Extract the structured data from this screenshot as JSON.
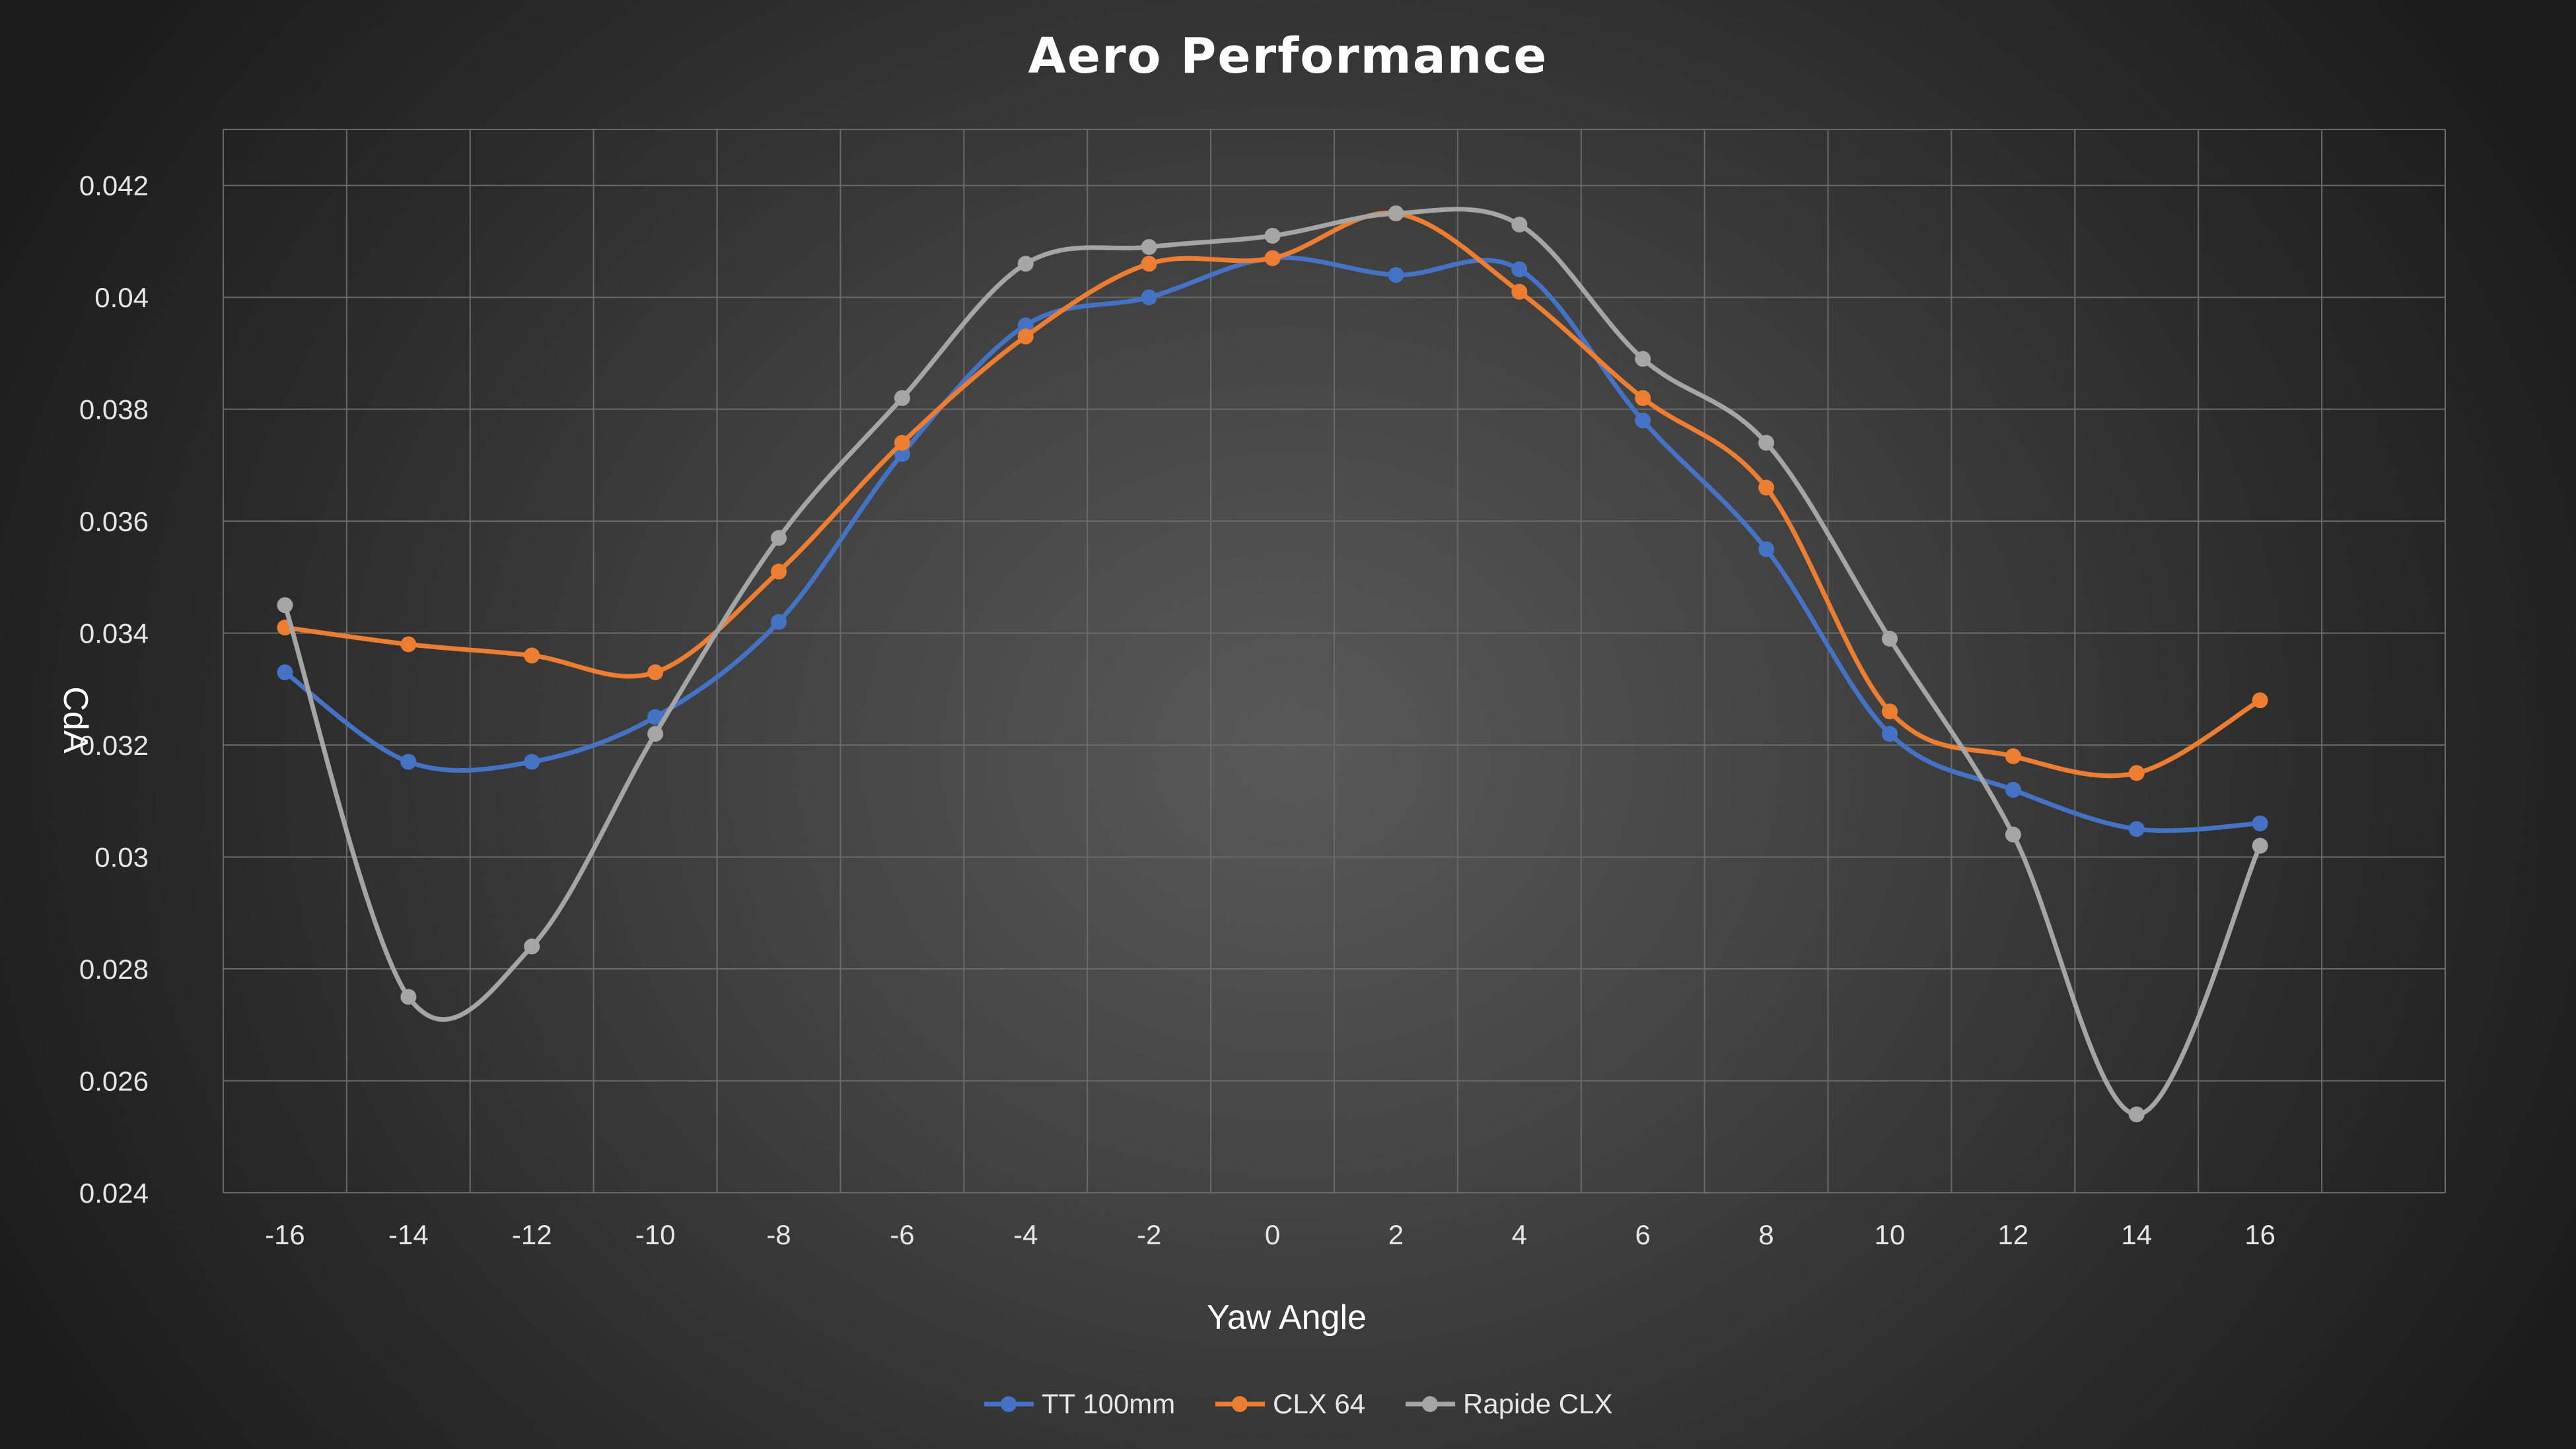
{
  "colors": {
    "tt": "#4472c4",
    "clx": "#ed7d31",
    "rapide": "#a5a5a5",
    "text": "#ffffff"
  },
  "chart_data": {
    "type": "line",
    "title": "Aero Performance",
    "xlabel": "Yaw Angle",
    "ylabel": "CdA",
    "x": [
      -16,
      -14,
      -12,
      -10,
      -8,
      -6,
      -4,
      -2,
      0,
      2,
      4,
      6,
      8,
      10,
      12,
      14,
      16
    ],
    "xtick_labels": [
      "-16",
      "-14",
      "-12",
      "-10",
      "-8",
      "-6",
      "-4",
      "-2",
      "0",
      "2",
      "4",
      "6",
      "8",
      "10",
      "12",
      "14",
      "16"
    ],
    "ytick_labels": [
      "0.024",
      "0.026",
      "0.028",
      "0.03",
      "0.032",
      "0.034",
      "0.036",
      "0.038",
      "0.04",
      "0.042"
    ],
    "yticks": [
      0.024,
      0.026,
      0.028,
      0.03,
      0.032,
      0.034,
      0.036,
      0.038,
      0.04,
      0.042
    ],
    "ylim": [
      0.024,
      0.043
    ],
    "xlim": [
      -17,
      19
    ],
    "grid": true,
    "smooth": true,
    "legend_position": "bottom",
    "series": [
      {
        "name": "TT 100mm",
        "color_key": "tt",
        "values": [
          0.0333,
          0.0317,
          0.0317,
          0.0325,
          0.0342,
          0.0372,
          0.0395,
          0.04,
          0.0407,
          0.0404,
          0.0405,
          0.0378,
          0.0355,
          0.0322,
          0.0312,
          0.0305,
          0.0306
        ]
      },
      {
        "name": "CLX 64",
        "color_key": "clx",
        "values": [
          0.0341,
          0.0338,
          0.0336,
          0.0333,
          0.0351,
          0.0374,
          0.0393,
          0.0406,
          0.0407,
          0.0415,
          0.0401,
          0.0382,
          0.0366,
          0.0326,
          0.0318,
          0.0315,
          0.0328
        ]
      },
      {
        "name": "Rapide CLX",
        "color_key": "rapide",
        "values": [
          0.0345,
          0.0275,
          0.0284,
          0.0322,
          0.0357,
          0.0382,
          0.0406,
          0.0409,
          0.0411,
          0.0415,
          0.0413,
          0.0389,
          0.0374,
          0.0339,
          0.0304,
          0.0254,
          0.0302
        ]
      }
    ]
  }
}
